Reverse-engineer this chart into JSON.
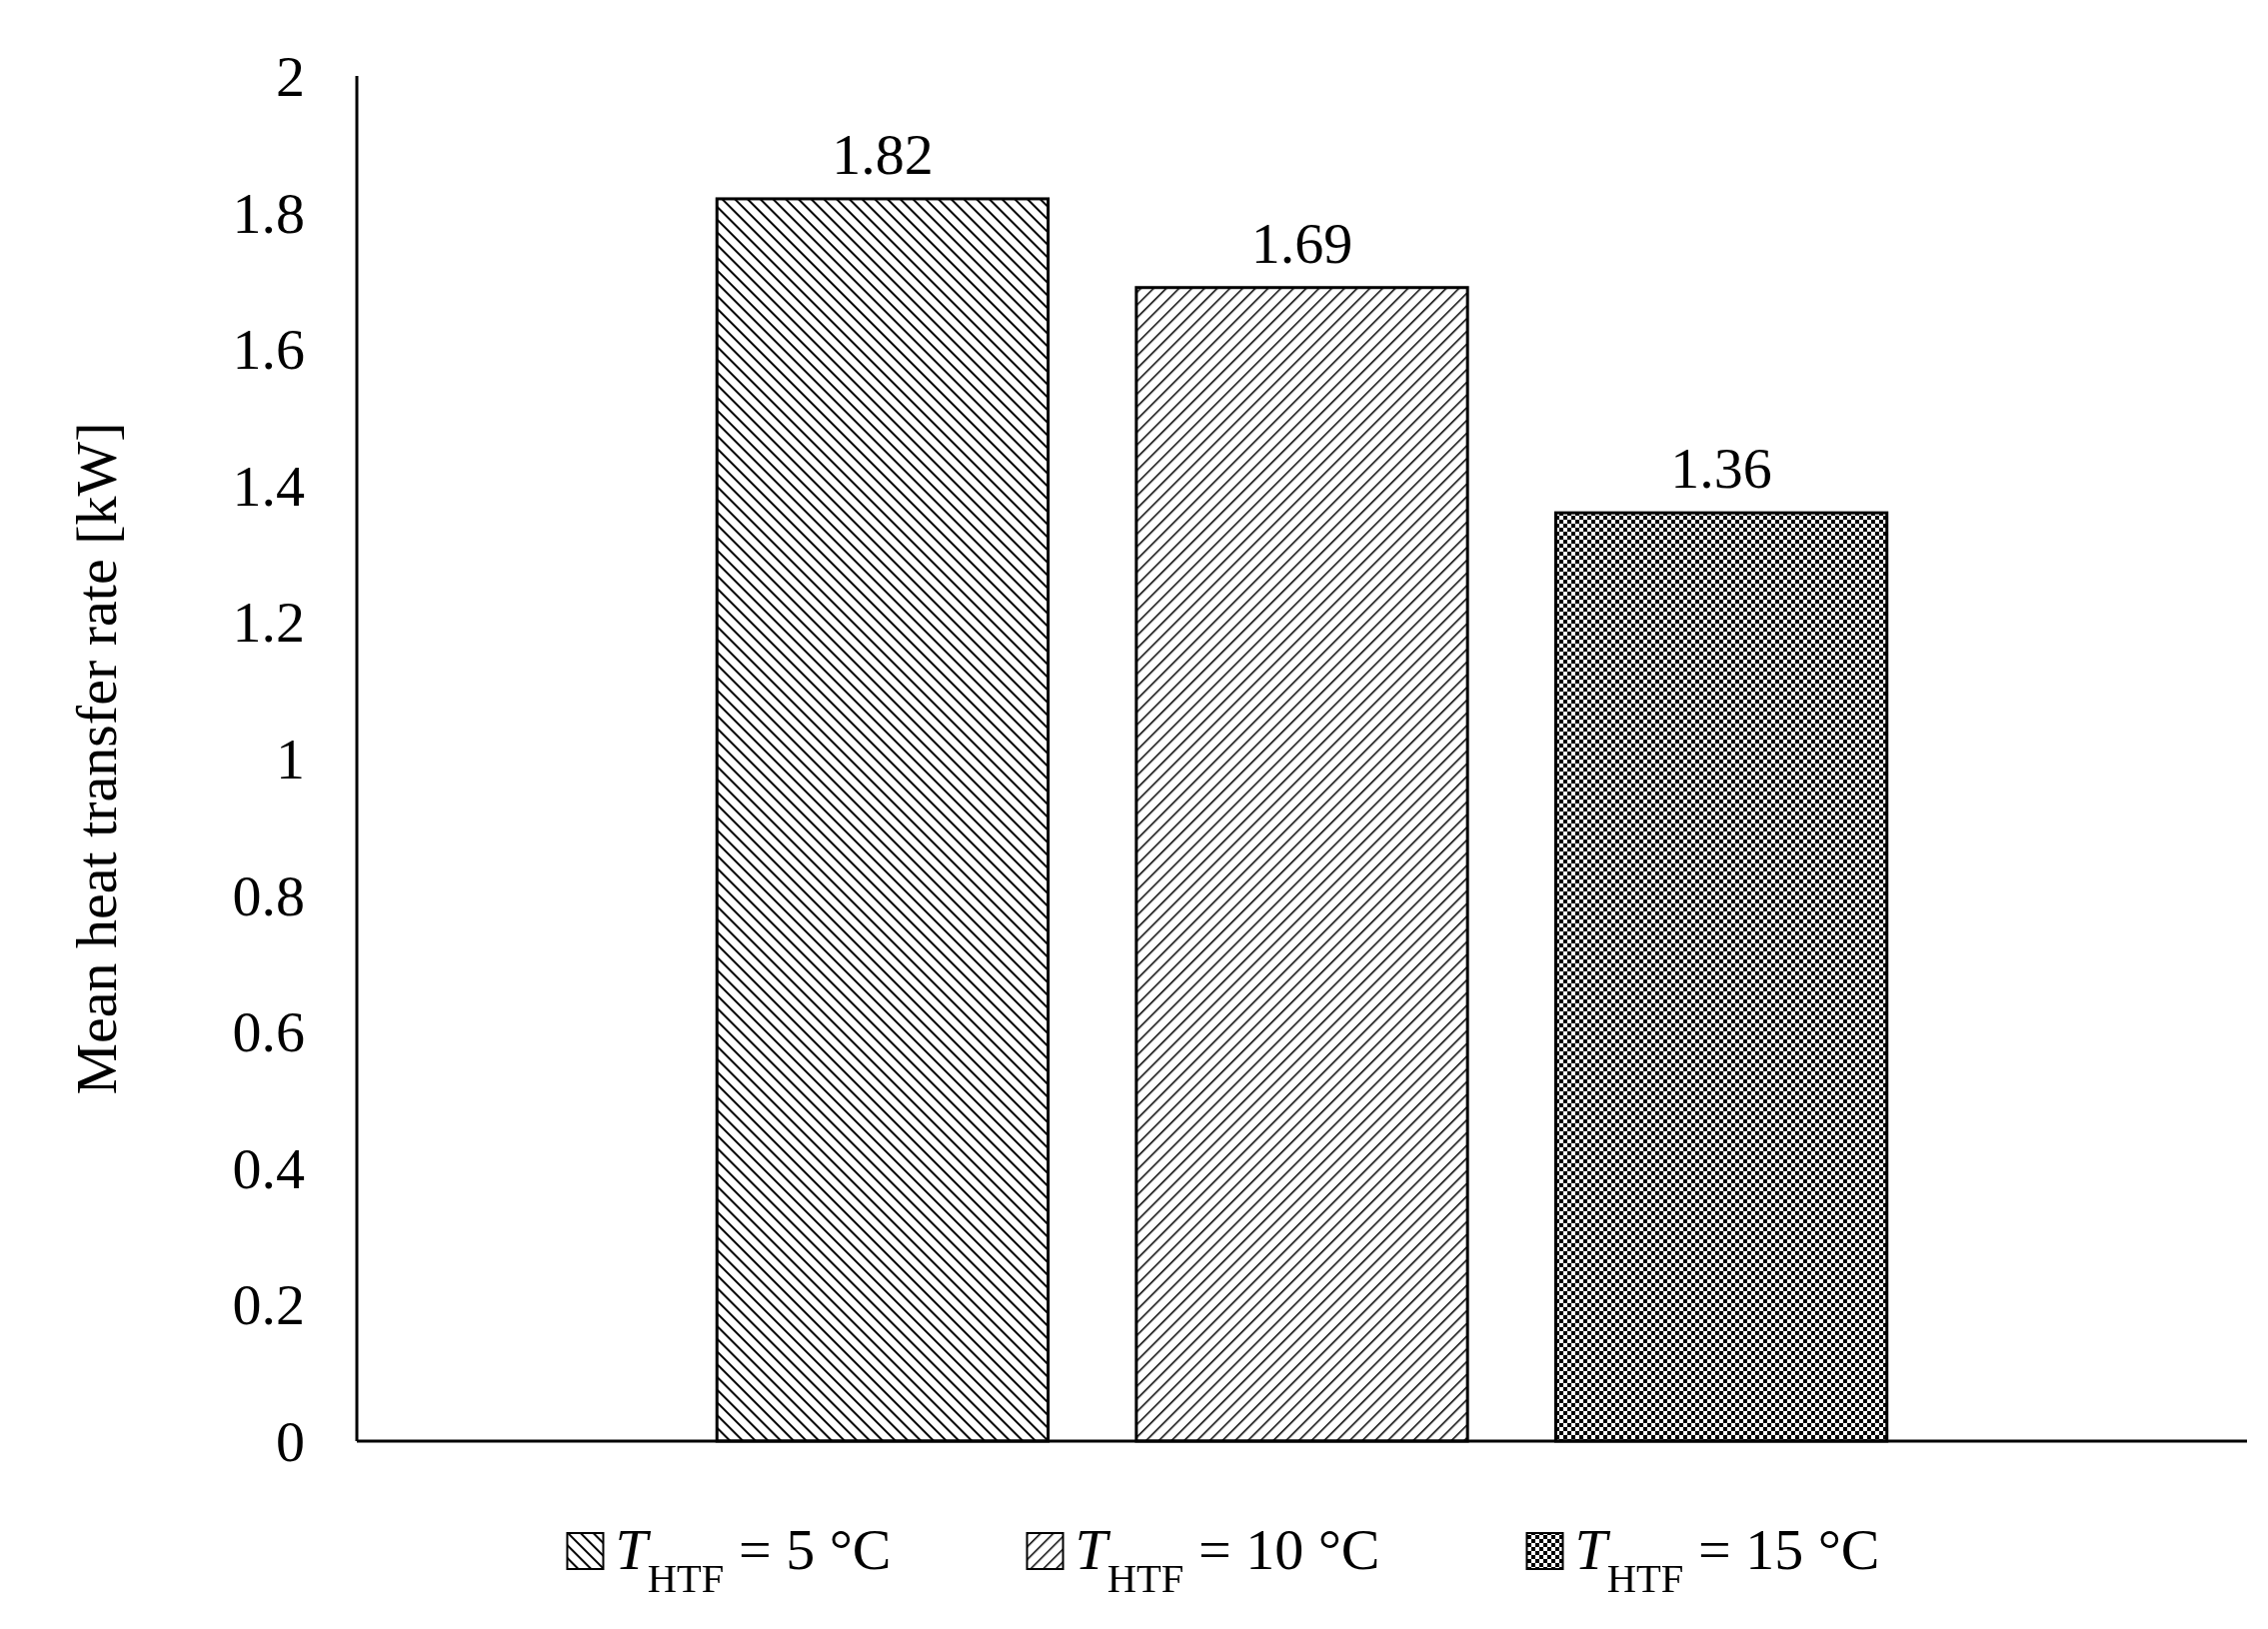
{
  "chart_data": {
    "type": "bar",
    "ylabel": "Mean heat transfer rate [kW]",
    "categories": [
      null
    ],
    "series": [
      {
        "name": "T$_{HTF}$ = 5 °C",
        "color": "#000000",
        "values": [
          1.82
        ]
      },
      {
        "name": "T$_{HTF}$ = 10 °C",
        "color": "#000000",
        "values": [
          1.69
        ]
      },
      {
        "name": "T$_{HTF}$ = 15 °C",
        "color": "#000000",
        "values": [
          1.36
        ]
      }
    ],
    "ylim": [
      0,
      2
    ],
    "yticks": [
      0,
      0.2,
      0.4,
      0.6,
      0.8,
      1,
      1.2,
      1.4,
      1.6,
      1.8,
      2
    ],
    "grid": false,
    "legend": "bottom",
    "data_labels": true
  }
}
